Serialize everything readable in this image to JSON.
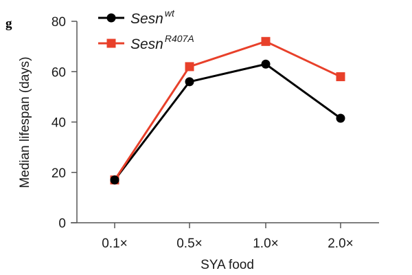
{
  "panel_label": "g",
  "chart_data": {
    "type": "line",
    "title": "",
    "xlabel": "SYA food",
    "ylabel": "Median lifespan (days)",
    "categories": [
      "0.1×",
      "0.5×",
      "1.0×",
      "2.0×"
    ],
    "ylim": [
      0,
      80
    ],
    "yticks": [
      0,
      20,
      40,
      60,
      80
    ],
    "ytick_labels": [
      "0",
      "20",
      "40",
      "60",
      "80"
    ],
    "grid": false,
    "legend_position": "top-left",
    "series": [
      {
        "name": "Sesn",
        "superscript": "wt",
        "marker": "circle",
        "color": "#000000",
        "values": [
          17,
          56,
          63,
          41.5
        ]
      },
      {
        "name": "Sesn",
        "superscript": "R407A",
        "marker": "square",
        "color": "#E8402A",
        "values": [
          17,
          62,
          72,
          58
        ]
      }
    ]
  }
}
